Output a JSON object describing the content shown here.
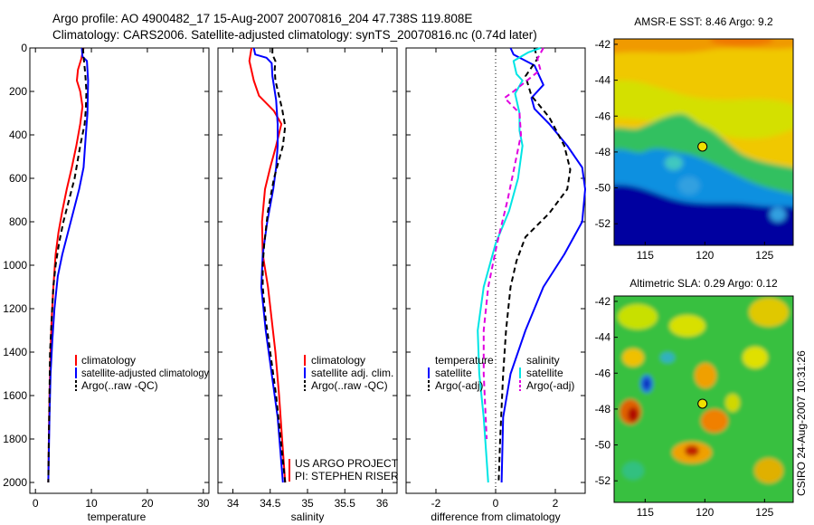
{
  "header": {
    "line1": "Argo profile: AO 4900482_17 15-Aug-2007 20070816_204 47.738S 119.808E",
    "line2": "Climatology: CARS2006. Satellite-adjusted climatology: synTS_20070816.nc (0.74d later)"
  },
  "side_text": "CSIRO 24-Aug-2007 10:31:26",
  "credits": [
    "US ARGO PROJECT",
    "PI: STEPHEN RISER"
  ],
  "colors": {
    "red": "#ff0000",
    "blue": "#0000ff",
    "black": "#000000",
    "cyan": "#00e5e5",
    "magenta": "#e000e0"
  },
  "chart_data": [
    {
      "type": "line",
      "xlabel": "temperature",
      "xlim": [
        -1,
        31
      ],
      "xticks": [
        "0",
        "10",
        "20",
        "30"
      ],
      "ylim": [
        0,
        2050
      ],
      "yticks": [
        "0",
        "200",
        "400",
        "600",
        "800",
        "1000",
        "1200",
        "1400",
        "1600",
        "1800",
        "2000"
      ],
      "legend_entries": [
        "climatology",
        "satellite-adjusted climatology",
        "Argo(..raw -QC)"
      ],
      "series": [
        {
          "name": "climatology",
          "color": "red",
          "dash": "",
          "points": [
            [
              8.6,
              0
            ],
            [
              8.2,
              50
            ],
            [
              7.6,
              100
            ],
            [
              7.4,
              150
            ],
            [
              8.0,
              200
            ],
            [
              8.4,
              270
            ],
            [
              8.0,
              350
            ],
            [
              7.3,
              450
            ],
            [
              6.5,
              550
            ],
            [
              5.6,
              650
            ],
            [
              4.8,
              750
            ],
            [
              4.1,
              850
            ],
            [
              3.6,
              950
            ],
            [
              3.2,
              1100
            ],
            [
              2.9,
              1250
            ],
            [
              2.7,
              1400
            ],
            [
              2.5,
              1600
            ],
            [
              2.4,
              1800
            ],
            [
              2.3,
              2000
            ]
          ]
        },
        {
          "name": "satellite-adjusted climatology",
          "color": "blue",
          "dash": "",
          "points": [
            [
              8.3,
              0
            ],
            [
              8.4,
              40
            ],
            [
              9.2,
              60
            ],
            [
              9.4,
              150
            ],
            [
              9.3,
              300
            ],
            [
              9.0,
              400
            ],
            [
              8.6,
              550
            ],
            [
              7.8,
              650
            ],
            [
              6.8,
              750
            ],
            [
              5.8,
              850
            ],
            [
              4.8,
              950
            ],
            [
              4.0,
              1050
            ],
            [
              3.4,
              1200
            ],
            [
              3.0,
              1350
            ],
            [
              2.7,
              1500
            ],
            [
              2.5,
              1700
            ],
            [
              2.3,
              2000
            ]
          ]
        },
        {
          "name": "Argo(..raw -QC)",
          "color": "black",
          "dash": "6,4",
          "points": [
            [
              8.5,
              0
            ],
            [
              8.6,
              40
            ],
            [
              8.9,
              120
            ],
            [
              9.1,
              200
            ],
            [
              9.0,
              280
            ],
            [
              8.8,
              350
            ],
            [
              8.0,
              450
            ],
            [
              7.0,
              600
            ],
            [
              6.0,
              700
            ],
            [
              5.0,
              800
            ],
            [
              4.2,
              900
            ],
            [
              3.6,
              1000
            ],
            [
              3.2,
              1100
            ],
            [
              2.9,
              1250
            ],
            [
              2.6,
              1400
            ],
            [
              2.5,
              1600
            ],
            [
              2.4,
              1800
            ],
            [
              2.3,
              2000
            ]
          ]
        }
      ]
    },
    {
      "type": "line",
      "xlabel": "salinity",
      "xlim": [
        33.8,
        36.2
      ],
      "xticks": [
        "34",
        "34.5",
        "35",
        "35.5",
        "36"
      ],
      "ylim": [
        0,
        2050
      ],
      "legend_entries": [
        "climatology",
        "satellite adj. clim.",
        "Argo(..raw -QC)"
      ],
      "series": [
        {
          "name": "climatology",
          "color": "red",
          "dash": "",
          "points": [
            [
              34.25,
              0
            ],
            [
              34.22,
              60
            ],
            [
              34.28,
              150
            ],
            [
              34.35,
              220
            ],
            [
              34.55,
              290
            ],
            [
              34.65,
              350
            ],
            [
              34.58,
              450
            ],
            [
              34.5,
              550
            ],
            [
              34.43,
              650
            ],
            [
              34.39,
              800
            ],
            [
              34.4,
              950
            ],
            [
              34.47,
              1100
            ],
            [
              34.52,
              1250
            ],
            [
              34.57,
              1400
            ],
            [
              34.62,
              1600
            ],
            [
              34.66,
              1800
            ],
            [
              34.7,
              2000
            ]
          ]
        },
        {
          "name": "satellite adj. clim.",
          "color": "blue",
          "dash": "",
          "points": [
            [
              34.28,
              0
            ],
            [
              34.3,
              30
            ],
            [
              34.45,
              45
            ],
            [
              34.52,
              70
            ],
            [
              34.53,
              130
            ],
            [
              34.58,
              240
            ],
            [
              34.6,
              350
            ],
            [
              34.6,
              450
            ],
            [
              34.58,
              550
            ],
            [
              34.54,
              650
            ],
            [
              34.46,
              800
            ],
            [
              34.4,
              950
            ],
            [
              34.38,
              1100
            ],
            [
              34.44,
              1300
            ],
            [
              34.52,
              1500
            ],
            [
              34.6,
              1700
            ],
            [
              34.67,
              2000
            ]
          ]
        },
        {
          "name": "Argo(..raw -QC)",
          "color": "black",
          "dash": "6,4",
          "points": [
            [
              34.53,
              0
            ],
            [
              34.53,
              30
            ],
            [
              34.57,
              60
            ],
            [
              34.56,
              100
            ],
            [
              34.57,
              150
            ],
            [
              34.66,
              280
            ],
            [
              34.7,
              360
            ],
            [
              34.67,
              450
            ],
            [
              34.55,
              600
            ],
            [
              34.47,
              750
            ],
            [
              34.42,
              900
            ],
            [
              34.4,
              1000
            ],
            [
              34.4,
              1100
            ],
            [
              34.44,
              1250
            ],
            [
              34.5,
              1400
            ],
            [
              34.58,
              1600
            ],
            [
              34.64,
              1800
            ],
            [
              34.7,
              2000
            ]
          ]
        }
      ]
    },
    {
      "type": "line",
      "xlabel": "difference from climatology",
      "xlim": [
        -3,
        3
      ],
      "xticks": [
        "-2",
        "0",
        "2"
      ],
      "ylim": [
        0,
        2050
      ],
      "legend_groups": [
        {
          "heading": "temperature",
          "entries": [
            "satellite",
            "Argo(-adj)"
          ]
        },
        {
          "heading": "salinity",
          "entries": [
            "satellite",
            "Argo(-adj)"
          ]
        }
      ],
      "series": [
        {
          "name": "temperature satellite",
          "color": "blue",
          "dash": "",
          "points": [
            [
              0.5,
              0
            ],
            [
              0.6,
              30
            ],
            [
              1.3,
              80
            ],
            [
              1.6,
              170
            ],
            [
              1.2,
              230
            ],
            [
              1.3,
              280
            ],
            [
              1.8,
              350
            ],
            [
              2.4,
              450
            ],
            [
              2.9,
              550
            ],
            [
              3.0,
              650
            ],
            [
              2.9,
              800
            ],
            [
              2.3,
              950
            ],
            [
              1.6,
              1100
            ],
            [
              1.0,
              1300
            ],
            [
              0.5,
              1500
            ],
            [
              0.25,
              1700
            ],
            [
              0.2,
              2000
            ]
          ]
        },
        {
          "name": "temperature Argo(-adj)",
          "color": "black",
          "dash": "6,4",
          "points": [
            [
              1.3,
              0
            ],
            [
              1.4,
              50
            ],
            [
              1.0,
              130
            ],
            [
              1.2,
              220
            ],
            [
              1.8,
              320
            ],
            [
              2.3,
              450
            ],
            [
              2.5,
              560
            ],
            [
              2.4,
              650
            ],
            [
              1.8,
              760
            ],
            [
              1.0,
              870
            ],
            [
              0.7,
              980
            ],
            [
              0.5,
              1100
            ],
            [
              0.35,
              1300
            ],
            [
              0.25,
              1500
            ],
            [
              0.15,
              1800
            ],
            [
              0.1,
              2000
            ]
          ]
        },
        {
          "name": "salinity satellite",
          "color": "cyan",
          "dash": "",
          "points": [
            [
              1.5,
              0
            ],
            [
              1.1,
              20
            ],
            [
              0.6,
              60
            ],
            [
              0.7,
              120
            ],
            [
              0.9,
              150
            ],
            [
              0.65,
              210
            ],
            [
              0.8,
              300
            ],
            [
              0.8,
              380
            ],
            [
              0.9,
              450
            ],
            [
              0.75,
              600
            ],
            [
              0.45,
              750
            ],
            [
              0.0,
              900
            ],
            [
              -0.4,
              1100
            ],
            [
              -0.6,
              1300
            ],
            [
              -0.55,
              1500
            ],
            [
              -0.4,
              1700
            ],
            [
              -0.25,
              2000
            ]
          ]
        },
        {
          "name": "salinity Argo(-adj)",
          "color": "magenta",
          "dash": "6,4",
          "points": [
            [
              1.6,
              0
            ],
            [
              1.4,
              50
            ],
            [
              1.5,
              100
            ],
            [
              0.6,
              200
            ],
            [
              0.3,
              230
            ],
            [
              0.8,
              300
            ],
            [
              0.85,
              400
            ],
            [
              0.7,
              500
            ],
            [
              0.4,
              700
            ],
            [
              0.05,
              900
            ],
            [
              -0.25,
              1100
            ],
            [
              -0.4,
              1300
            ],
            [
              -0.4,
              1500
            ],
            [
              -0.3,
              1800
            ]
          ]
        }
      ]
    },
    {
      "type": "heatmap",
      "title": "AMSR-E SST: 8.46 Argo: 9.2",
      "xticks": [
        "115",
        "120",
        "125"
      ],
      "yticks": [
        "-42",
        "-44",
        "-46",
        "-48",
        "-50",
        "-52"
      ],
      "xlim": [
        112.4,
        127.4
      ],
      "ylim": [
        -53.2,
        -41.7
      ],
      "marker": [
        119.8,
        -47.7
      ]
    },
    {
      "type": "heatmap",
      "title": "Altimetric SLA: 0.29 Argo: 0.12",
      "xticks": [
        "115",
        "120",
        "125"
      ],
      "yticks": [
        "-42",
        "-44",
        "-46",
        "-48",
        "-50",
        "-52"
      ],
      "xlim": [
        112.4,
        127.4
      ],
      "ylim": [
        -53.2,
        -41.7
      ],
      "marker": [
        119.8,
        -47.7
      ]
    }
  ]
}
